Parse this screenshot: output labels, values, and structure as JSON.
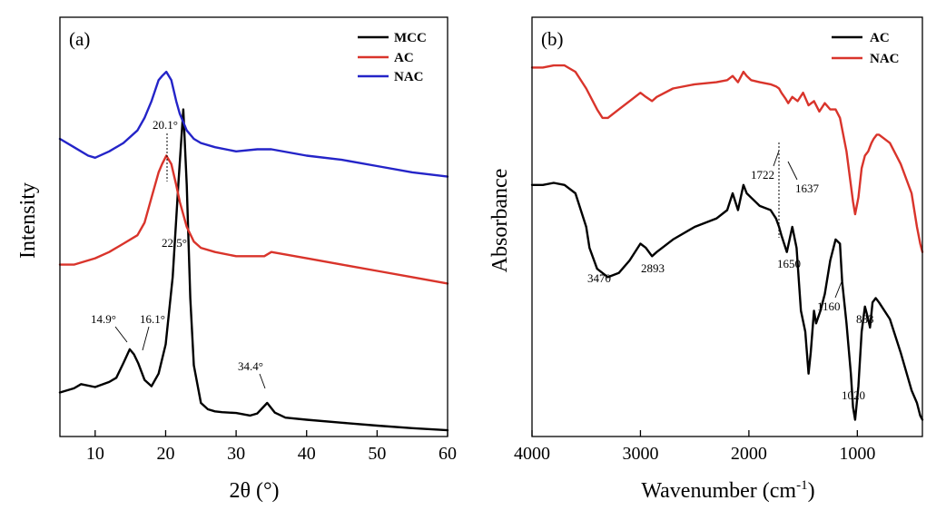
{
  "chart_data": [
    {
      "type": "line",
      "panel_label": "(a)",
      "xlabel": "2θ (°)",
      "ylabel": "Intensity",
      "xlim": [
        5,
        60
      ],
      "xticks": [
        10,
        20,
        30,
        40,
        50,
        60
      ],
      "ylim": [
        0,
        1
      ],
      "y_ticks_labeled": false,
      "legend": "top-right",
      "series": [
        {
          "name": "MCC",
          "color": "#000000",
          "x": [
            5,
            7,
            8,
            10,
            12,
            13,
            14,
            14.9,
            15.5,
            16.1,
            17,
            18,
            19,
            20,
            21,
            21.8,
            22.5,
            23,
            23.5,
            24,
            25,
            26,
            27,
            28,
            30,
            32,
            33,
            34.4,
            35.5,
            37,
            40,
            45,
            50,
            55,
            60
          ],
          "y": [
            0.105,
            0.115,
            0.125,
            0.118,
            0.13,
            0.14,
            0.175,
            0.208,
            0.196,
            0.175,
            0.135,
            0.12,
            0.15,
            0.22,
            0.38,
            0.6,
            0.78,
            0.6,
            0.33,
            0.17,
            0.08,
            0.065,
            0.06,
            0.058,
            0.056,
            0.05,
            0.055,
            0.08,
            0.057,
            0.045,
            0.04,
            0.033,
            0.026,
            0.02,
            0.015
          ]
        },
        {
          "name": "AC",
          "color": "#d9342b",
          "x": [
            5,
            7,
            10,
            12,
            14,
            16,
            17,
            18,
            19,
            19.5,
            20.1,
            20.8,
            21.5,
            22,
            23,
            24,
            25,
            27,
            30,
            32,
            34,
            35,
            40,
            45,
            50,
            55,
            60
          ],
          "y": [
            0.41,
            0.41,
            0.425,
            0.44,
            0.46,
            0.48,
            0.51,
            0.57,
            0.63,
            0.65,
            0.67,
            0.65,
            0.6,
            0.56,
            0.5,
            0.465,
            0.45,
            0.44,
            0.43,
            0.43,
            0.43,
            0.44,
            0.425,
            0.41,
            0.395,
            0.38,
            0.365
          ]
        },
        {
          "name": "NAC",
          "color": "#2424c8",
          "x": [
            5,
            7,
            9,
            10,
            12,
            14,
            16,
            17,
            18,
            19,
            19.5,
            20.1,
            20.8,
            21.5,
            22,
            23,
            24,
            25,
            27,
            30,
            33,
            35,
            40,
            45,
            50,
            55,
            60
          ],
          "y": [
            0.71,
            0.69,
            0.67,
            0.665,
            0.68,
            0.7,
            0.73,
            0.76,
            0.8,
            0.85,
            0.86,
            0.87,
            0.85,
            0.8,
            0.77,
            0.73,
            0.71,
            0.7,
            0.69,
            0.68,
            0.685,
            0.685,
            0.67,
            0.66,
            0.645,
            0.63,
            0.62
          ]
        }
      ],
      "annotations": [
        {
          "text": "20.1°",
          "x": 20.1
        },
        {
          "text": "22.5°",
          "x": 22.5
        },
        {
          "text": "14.9°",
          "x": 14.9
        },
        {
          "text": "16.1°",
          "x": 16.1
        },
        {
          "text": "34.4°",
          "x": 34.4
        }
      ]
    },
    {
      "type": "line",
      "panel_label": "(b)",
      "xlabel": "Wavenumber (cm",
      "xlabel_sup": "-1",
      "xlabel_close": ")",
      "ylabel": "Absorbance",
      "xlim": [
        4000,
        400
      ],
      "xticks": [
        4000,
        3000,
        2000,
        1000
      ],
      "ylim": [
        0,
        1
      ],
      "y_ticks_labeled": false,
      "legend": "top-right",
      "series": [
        {
          "name": "AC",
          "color": "#000000",
          "x": [
            4000,
            3900,
            3800,
            3700,
            3600,
            3500,
            3470,
            3400,
            3300,
            3200,
            3100,
            3000,
            2950,
            2893,
            2850,
            2700,
            2500,
            2300,
            2200,
            2150,
            2100,
            2050,
            2020,
            1980,
            1900,
            1800,
            1750,
            1722,
            1700,
            1650,
            1600,
            1560,
            1520,
            1480,
            1450,
            1430,
            1400,
            1380,
            1340,
            1300,
            1250,
            1200,
            1160,
            1140,
            1100,
            1060,
            1040,
            1020,
            990,
            960,
            930,
            900,
            883,
            860,
            830,
            800,
            700,
            600,
            500,
            450,
            420,
            400
          ],
          "y": [
            0.6,
            0.6,
            0.605,
            0.6,
            0.58,
            0.5,
            0.45,
            0.4,
            0.38,
            0.39,
            0.42,
            0.46,
            0.45,
            0.43,
            0.44,
            0.47,
            0.5,
            0.52,
            0.54,
            0.58,
            0.54,
            0.6,
            0.58,
            0.57,
            0.55,
            0.54,
            0.52,
            0.5,
            0.48,
            0.44,
            0.5,
            0.45,
            0.3,
            0.25,
            0.15,
            0.2,
            0.3,
            0.27,
            0.3,
            0.34,
            0.42,
            0.47,
            0.46,
            0.37,
            0.27,
            0.15,
            0.07,
            0.04,
            0.12,
            0.25,
            0.31,
            0.28,
            0.26,
            0.32,
            0.33,
            0.32,
            0.28,
            0.2,
            0.11,
            0.08,
            0.05,
            0.04
          ]
        },
        {
          "name": "NAC",
          "color": "#d9342b",
          "x": [
            4000,
            3900,
            3800,
            3700,
            3600,
            3500,
            3400,
            3350,
            3300,
            3200,
            3100,
            3000,
            2950,
            2893,
            2850,
            2700,
            2500,
            2300,
            2200,
            2150,
            2100,
            2050,
            2020,
            1980,
            1900,
            1800,
            1750,
            1722,
            1700,
            1660,
            1637,
            1600,
            1550,
            1500,
            1450,
            1400,
            1350,
            1300,
            1250,
            1200,
            1160,
            1100,
            1060,
            1040,
            1020,
            990,
            960,
            930,
            900,
            870,
            850,
            820,
            800,
            700,
            600,
            500,
            450,
            420,
            400
          ],
          "y": [
            0.88,
            0.88,
            0.885,
            0.885,
            0.87,
            0.83,
            0.78,
            0.76,
            0.76,
            0.78,
            0.8,
            0.82,
            0.81,
            0.8,
            0.81,
            0.83,
            0.84,
            0.845,
            0.85,
            0.86,
            0.845,
            0.87,
            0.86,
            0.85,
            0.845,
            0.84,
            0.835,
            0.83,
            0.82,
            0.805,
            0.795,
            0.81,
            0.8,
            0.82,
            0.79,
            0.8,
            0.775,
            0.795,
            0.78,
            0.78,
            0.76,
            0.68,
            0.6,
            0.56,
            0.53,
            0.57,
            0.64,
            0.67,
            0.68,
            0.7,
            0.71,
            0.72,
            0.72,
            0.7,
            0.65,
            0.58,
            0.5,
            0.46,
            0.44
          ]
        }
      ],
      "annotations": [
        {
          "text": "1722",
          "x": 1722
        },
        {
          "text": "1637",
          "x": 1637
        },
        {
          "text": "1650",
          "x": 1650
        },
        {
          "text": "3470",
          "x": 3470
        },
        {
          "text": "2893",
          "x": 2893
        },
        {
          "text": "1160",
          "x": 1160
        },
        {
          "text": "883",
          "x": 883
        },
        {
          "text": "1020",
          "x": 1020
        }
      ]
    }
  ]
}
